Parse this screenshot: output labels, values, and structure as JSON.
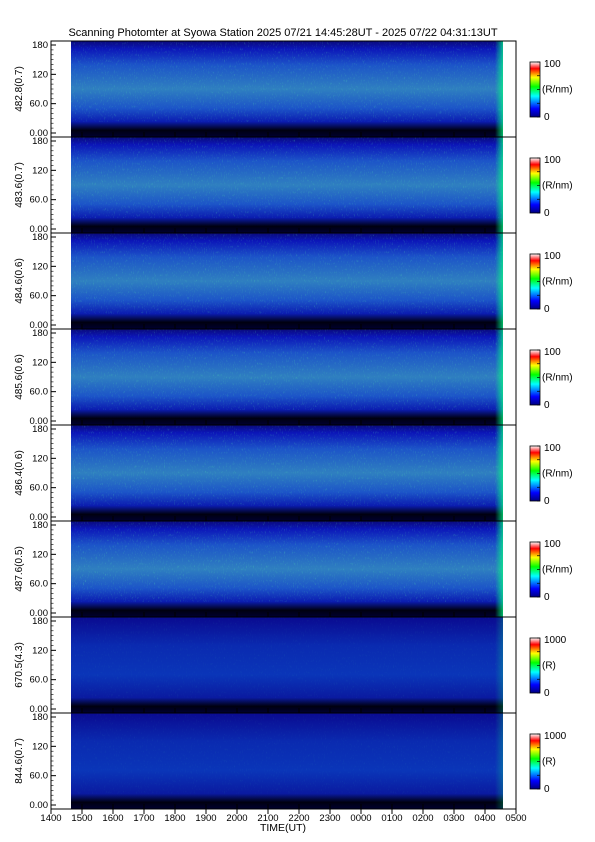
{
  "title": "Scanning Photomter at Syowa Station  2025 07/21 14:45:28UT - 2025 07/22 04:31:13UT",
  "chart_data": {
    "type": "heatmap",
    "xlabel": "TIME(UT)",
    "x_ticks": [
      "1400",
      "1500",
      "1600",
      "1700",
      "1800",
      "1900",
      "2000",
      "2100",
      "2200",
      "2300",
      "0000",
      "0100",
      "0200",
      "0300",
      "0400",
      "0500"
    ],
    "y_ticks": [
      "0.00",
      "60.0",
      "120",
      "180"
    ],
    "ylim": [
      0,
      180
    ],
    "colormap": [
      "#00007f",
      "#0000ff",
      "#00ffff",
      "#00ff00",
      "#ffff00",
      "#ff0000",
      "#ffffff"
    ],
    "panels": [
      {
        "label": "482.8(0.7)",
        "cb_max": "100",
        "cb_min": "0",
        "unit": "(R/nm)"
      },
      {
        "label": "483.6(0.7)",
        "cb_max": "100",
        "cb_min": "0",
        "unit": "(R/nm)"
      },
      {
        "label": "484.6(0.6)",
        "cb_max": "100",
        "cb_min": "0",
        "unit": "(R/nm)"
      },
      {
        "label": "485.6(0.6)",
        "cb_max": "100",
        "cb_min": "0",
        "unit": "(R/nm)"
      },
      {
        "label": "486.4(0.6)",
        "cb_max": "100",
        "cb_min": "0",
        "unit": "(R/nm)"
      },
      {
        "label": "487.6(0.5)",
        "cb_max": "100",
        "cb_min": "0",
        "unit": "(R/nm)"
      },
      {
        "label": "670.5(4.3)",
        "cb_max": "1000",
        "cb_min": "0",
        "unit": "(R)"
      },
      {
        "label": "844.6(0.7)",
        "cb_max": "1000",
        "cb_min": "0",
        "unit": "(R)"
      }
    ]
  }
}
